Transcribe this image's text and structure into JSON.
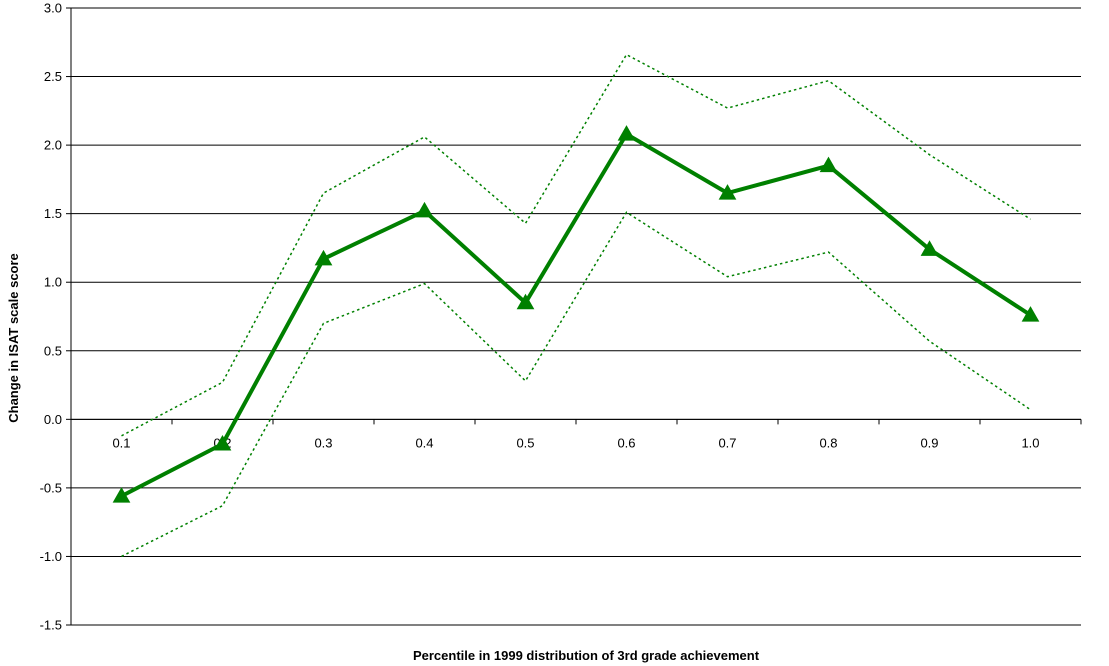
{
  "chart_data": {
    "type": "line",
    "title": "",
    "xlabel": "Percentile in 1999 distribution of 3rd grade achievement",
    "ylabel": "Change in ISAT scale score",
    "categories": [
      "0.1",
      "0.2",
      "0.3",
      "0.4",
      "0.5",
      "0.6",
      "0.7",
      "0.8",
      "0.9",
      "1.0"
    ],
    "ylim": [
      -1.5,
      3.0
    ],
    "yticks": [
      "-1.5",
      "-1.0",
      "-0.5",
      "0.0",
      "0.5",
      "1.0",
      "1.5",
      "2.0",
      "2.5",
      "3.0"
    ],
    "grid": true,
    "legend": "none",
    "series": [
      {
        "values": [
          -0.56,
          -0.18,
          1.17,
          1.52,
          0.85,
          2.08,
          1.65,
          1.85,
          1.24,
          0.76
        ],
        "style": "solid-with-triangle-markers",
        "color": "#008000"
      },
      {
        "values": [
          -0.12,
          0.27,
          1.65,
          2.06,
          1.43,
          2.66,
          2.27,
          2.47,
          1.93,
          1.46
        ],
        "style": "dotted",
        "color": "#008000"
      },
      {
        "values": [
          -1.0,
          -0.63,
          0.7,
          0.99,
          0.28,
          1.51,
          1.04,
          1.22,
          0.57,
          0.07
        ],
        "style": "dotted",
        "color": "#008000"
      }
    ]
  }
}
